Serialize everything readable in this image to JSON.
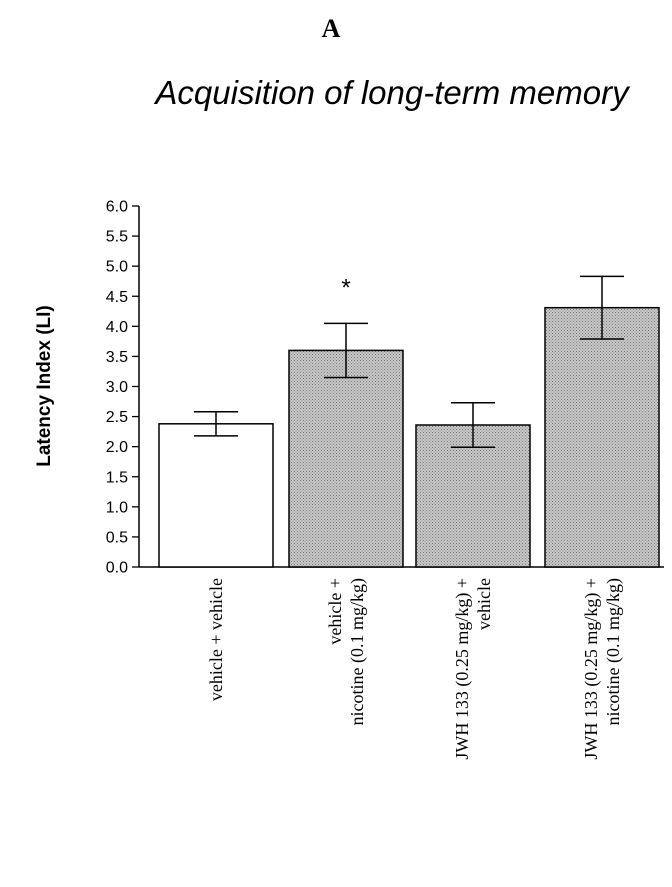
{
  "figure": {
    "panel_label": "A"
  },
  "colors": {
    "axis": "#000000",
    "bar_outline": "#000000",
    "bar_fill_white": "#ffffff",
    "bar_fill_gray": "#bdbdbd"
  },
  "chart_data": {
    "type": "bar",
    "title": "Acquisition of long-term memory",
    "xlabel": "",
    "ylabel": "Latency Index (LI)",
    "ylim": [
      0.0,
      6.0
    ],
    "yticks": [
      "0.0",
      "0.5",
      "1.0",
      "1.5",
      "2.0",
      "2.5",
      "3.0",
      "3.5",
      "4.0",
      "4.5",
      "5.0",
      "5.5",
      "6.0"
    ],
    "grid": false,
    "legend": "none",
    "categories": [
      [
        "vehicle + vehicle"
      ],
      [
        "vehicle +",
        "nicotine (0.1 mg/kg)"
      ],
      [
        "JWH 133 (0.25 mg/kg) +",
        "vehicle"
      ],
      [
        "JWH 133 (0.25 mg/kg) +",
        "nicotine (0.1 mg/kg)"
      ]
    ],
    "values": [
      2.38,
      3.6,
      2.36,
      4.31
    ],
    "errors": [
      0.2,
      0.45,
      0.37,
      0.52
    ],
    "fills": [
      "white",
      "gray-dotted",
      "gray-dotted",
      "gray-dotted"
    ],
    "annotations": [
      {
        "category_index": 1,
        "text": "*"
      }
    ]
  }
}
